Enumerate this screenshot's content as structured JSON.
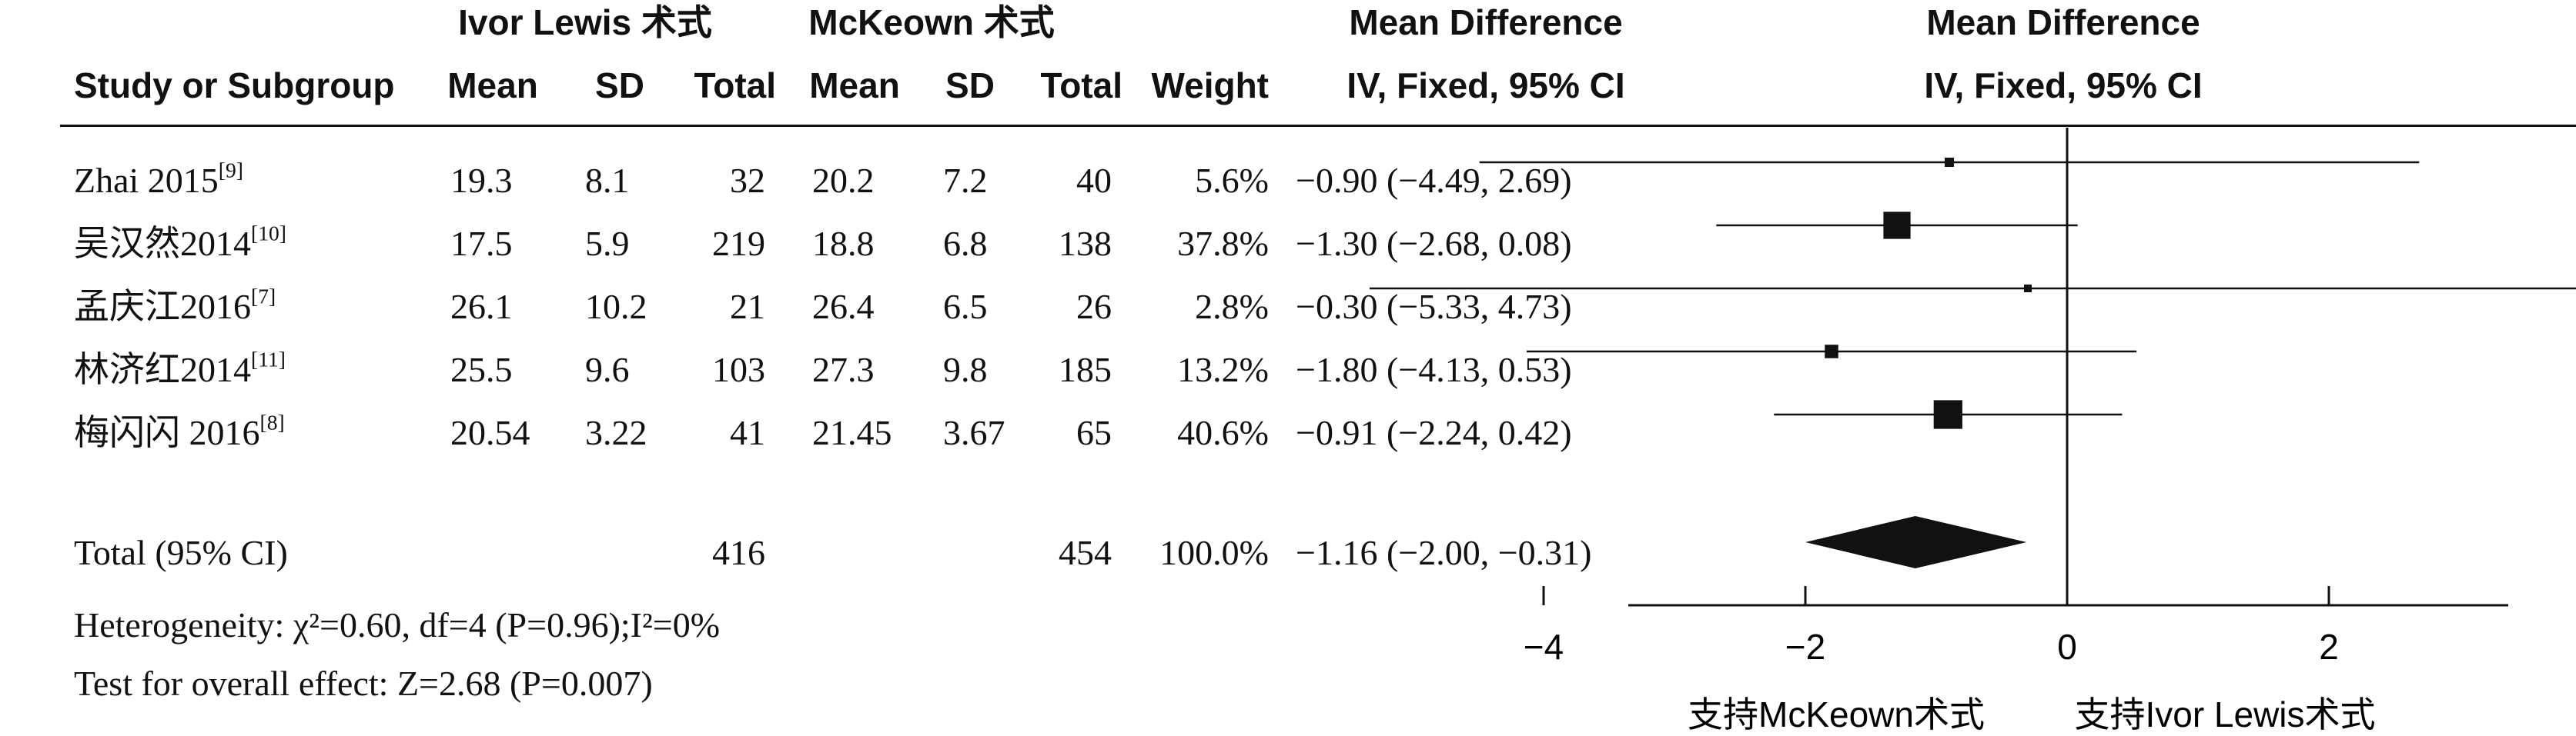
{
  "headers": {
    "group1": "Ivor Lewis 术式",
    "group2": "McKeown 术式",
    "md_top": "Mean Difference",
    "md_sub": "IV, Fixed, 95% CI",
    "plot_top": "Mean Difference",
    "plot_sub": "IV, Fixed, 95% CI",
    "study": "Study or Subgroup",
    "mean1": "Mean",
    "sd1": "SD",
    "total1": "Total",
    "mean2": "Mean",
    "sd2": "SD",
    "total2": "Total",
    "weight": "Weight"
  },
  "rows": [
    {
      "study": "Zhai 2015",
      "ref": "[9]",
      "mean1": "19.3",
      "sd1": "8.1",
      "total1": "32",
      "mean2": "20.2",
      "sd2": "7.2",
      "total2": "40",
      "weight": "5.6%",
      "ci": "−0.90 (−4.49, 2.69)"
    },
    {
      "study": "吴汉然2014",
      "ref": "[10]",
      "mean1": "17.5",
      "sd1": "5.9",
      "total1": "219",
      "mean2": "18.8",
      "sd2": "6.8",
      "total2": "138",
      "weight": "37.8%",
      "ci": "−1.30 (−2.68, 0.08)"
    },
    {
      "study": "孟庆江2016",
      "ref": "[7]",
      "mean1": "26.1",
      "sd1": "10.2",
      "total1": "21",
      "mean2": "26.4",
      "sd2": "6.5",
      "total2": "26",
      "weight": "2.8%",
      "ci": "−0.30 (−5.33, 4.73)"
    },
    {
      "study": "林济红2014",
      "ref": "[11]",
      "mean1": "25.5",
      "sd1": "9.6",
      "total1": "103",
      "mean2": "27.3",
      "sd2": "9.8",
      "total2": "185",
      "weight": "13.2%",
      "ci": "−1.80 (−4.13, 0.53)"
    },
    {
      "study": "梅闪闪 2016",
      "ref": "[8]",
      "mean1": "20.54",
      "sd1": "3.22",
      "total1": "41",
      "mean2": "21.45",
      "sd2": "3.67",
      "total2": "65",
      "weight": "40.6%",
      "ci": "−0.91 (−2.24, 0.42)"
    }
  ],
  "total": {
    "label": "Total (95% CI)",
    "total1": "416",
    "total2": "454",
    "weight": "100.0%",
    "ci": "−1.16 (−2.00, −0.31)"
  },
  "footer": {
    "heterogeneity": "Heterogeneity: χ²=0.60, df=4 (P=0.96);I²=0%",
    "overall": "Test for overall effect: Z=2.68 (P=0.007)"
  },
  "axis": {
    "favours_left": "支持McKeown术式",
    "favours_right": "支持Ivor Lewis术式"
  },
  "chart_data": {
    "type": "forest",
    "title": "Mean Difference",
    "subtitle": "IV, Fixed, 95% CI",
    "xlim": [
      -5,
      5
    ],
    "xticks": [
      -4,
      -2,
      0,
      2,
      4
    ],
    "studies": [
      {
        "name": "Zhai 2015",
        "md": -0.9,
        "lo": -4.49,
        "hi": 2.69,
        "weight": 5.6
      },
      {
        "name": "吴汉然2014",
        "md": -1.3,
        "lo": -2.68,
        "hi": 0.08,
        "weight": 37.8
      },
      {
        "name": "孟庆江2016",
        "md": -0.3,
        "lo": -5.33,
        "hi": 4.73,
        "weight": 2.8
      },
      {
        "name": "林济红2014",
        "md": -1.8,
        "lo": -4.13,
        "hi": 0.53,
        "weight": 13.2
      },
      {
        "name": "梅闪闪 2016",
        "md": -0.91,
        "lo": -2.24,
        "hi": 0.42,
        "weight": 40.6
      }
    ],
    "pooled": {
      "md": -1.16,
      "lo": -2.0,
      "hi": -0.31
    },
    "xlabel_left": "支持McKeown术式",
    "xlabel_right": "支持Ivor Lewis术式"
  }
}
